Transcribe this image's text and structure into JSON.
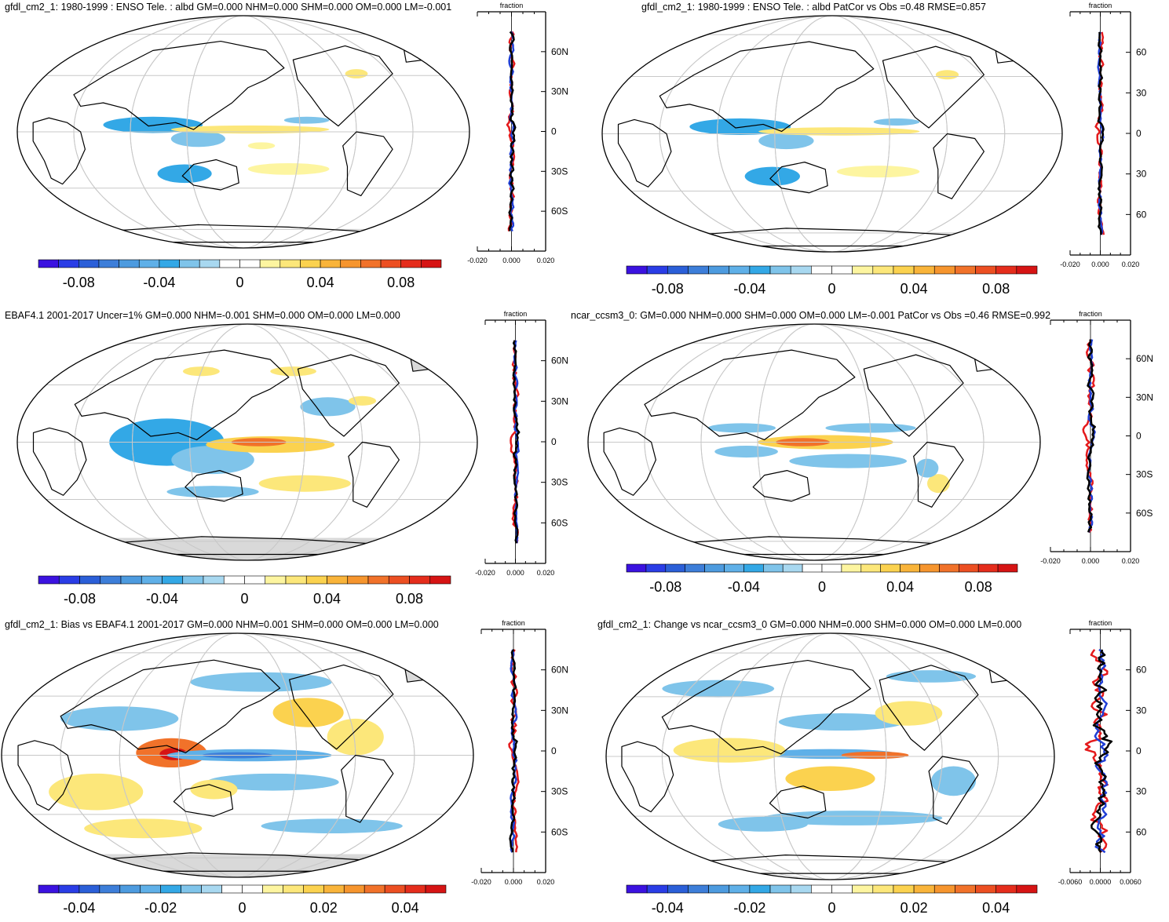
{
  "panels": [
    {
      "id": "p1",
      "title": "gfdl_cm2_1: 1980-1999 : ENSO Tele. : albd GM=0.000 NHM=0.000 SHM=0.000 OM=0.000 LM=-0.001",
      "zonal": {
        "header": "fraction",
        "lat_ticks": [
          "60N",
          "30N",
          "0",
          "30S",
          "60S"
        ],
        "x_ticks": [
          "-0.020",
          "0.000",
          "0.020"
        ]
      },
      "colorbar": {
        "labels": [
          "-0.08",
          "-0.04",
          "0",
          "0.04",
          "0.08"
        ]
      }
    },
    {
      "id": "p2",
      "title": "gfdl_cm2_1: 1980-1999 : ENSO Tele. : albd PatCor vs Obs =0.48 RMSE=0.857",
      "zonal": {
        "header": "fraction",
        "lat_ticks": [
          "60",
          "30",
          "0",
          "30",
          "60"
        ],
        "x_ticks": [
          "-0.020",
          "0.000",
          "0.020"
        ]
      },
      "colorbar": {
        "labels": [
          "-0.08",
          "-0.04",
          "0",
          "0.04",
          "0.08"
        ]
      }
    },
    {
      "id": "p3",
      "title": "EBAF4.1 2001-2017 Uncer=1% GM=0.000 NHM=-0.001 SHM=0.000 OM=0.000 LM=0.000",
      "zonal": {
        "header": "fraction",
        "lat_ticks": [
          "60N",
          "30N",
          "0",
          "30S",
          "60S"
        ],
        "x_ticks": [
          "-0.020",
          "0.000",
          "0.020"
        ]
      },
      "colorbar": {
        "labels": [
          "-0.08",
          "-0.04",
          "0",
          "0.04",
          "0.08"
        ]
      }
    },
    {
      "id": "p4",
      "title": "ncar_ccsm3_0: GM=0.000 NHM=0.000 SHM=0.000 OM=0.000 LM=-0.001 PatCor vs Obs =0.46 RMSE=0.992",
      "zonal": {
        "header": "fraction",
        "lat_ticks": [
          "60N",
          "30N",
          "0",
          "30S",
          "60S"
        ],
        "x_ticks": [
          "-0.020",
          "0.000",
          "0.020"
        ]
      },
      "colorbar": {
        "labels": [
          "-0.08",
          "-0.04",
          "0",
          "0.04",
          "0.08"
        ]
      }
    },
    {
      "id": "p5",
      "title": "gfdl_cm2_1: Bias vs EBAF4.1 2001-2017 GM=0.000 NHM=0.001 SHM=0.000 OM=0.000 LM=0.000",
      "zonal": {
        "header": "fraction",
        "lat_ticks": [
          "60N",
          "30N",
          "0",
          "30S",
          "60S"
        ],
        "x_ticks": [
          "-0.020",
          "0.000",
          "0.020"
        ]
      },
      "colorbar": {
        "labels": [
          "-0.04",
          "-0.02",
          "0",
          "0.02",
          "0.04"
        ]
      }
    },
    {
      "id": "p6",
      "title": "gfdl_cm2_1: Change vs ncar_ccsm3_0 GM=0.000 NHM=0.000 SHM=0.000 OM=0.000 LM=0.000",
      "zonal": {
        "header": "fraction",
        "lat_ticks": [
          "60",
          "30",
          "0",
          "30",
          "60"
        ],
        "x_ticks": [
          "-0.0060",
          "0.0000",
          "0.0060"
        ]
      },
      "colorbar": {
        "labels": [
          "-0.04",
          "-0.02",
          "0",
          "0.02",
          "0.04"
        ]
      }
    }
  ],
  "palette": [
    "#3b12e0",
    "#2a3de6",
    "#2b5fd8",
    "#3d7ed9",
    "#4d9bdf",
    "#5fb0e8",
    "#33a8e6",
    "#7fc4ea",
    "#a8d8f0",
    "#ffffff",
    "#ffffff",
    "#fdf5a0",
    "#fce77a",
    "#fbd24f",
    "#f9b43a",
    "#f6952e",
    "#f1722a",
    "#ec4f22",
    "#e52d1c",
    "#d61414"
  ],
  "line_colors": {
    "model": "#e41a1c",
    "obs": "#1f3fd6",
    "mean": "#000000"
  }
}
